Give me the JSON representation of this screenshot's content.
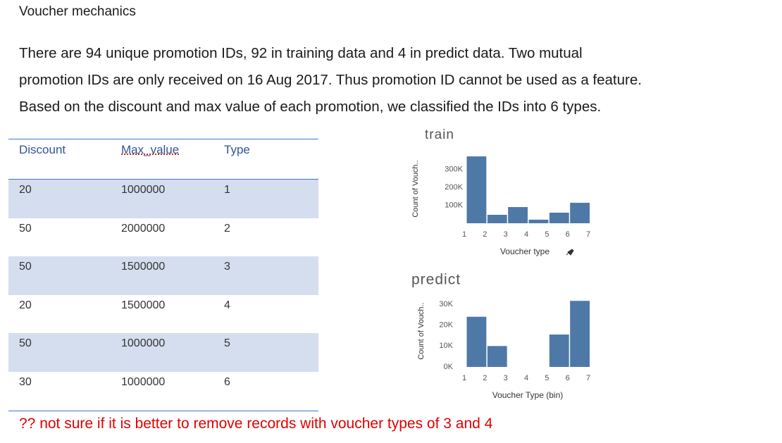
{
  "heading": "Voucher mechanics",
  "paragraph": [
    "There are 94 unique promotion IDs, 92 in training data and 4 in predict data. Two mutual",
    "promotion IDs are only received on 16 Aug 2017. Thus promotion ID cannot be used as a feature.",
    "Based on the discount and max value of each promotion, we classified the IDs into 6 types."
  ],
  "table": {
    "header": [
      "Discount",
      "Max_value",
      "Type"
    ],
    "rows": [
      [
        20,
        1000000,
        1
      ],
      [
        50,
        2000000,
        2
      ],
      [
        50,
        1500000,
        3
      ],
      [
        20,
        1500000,
        4
      ],
      [
        50,
        1000000,
        5
      ],
      [
        30,
        1000000,
        6
      ]
    ]
  },
  "chart_data": [
    {
      "type": "histogram",
      "title": "train",
      "ylabel": "Count of Vouch..",
      "xlabel": "Voucher type",
      "bins": [
        1,
        2,
        3,
        4,
        5,
        6,
        7
      ],
      "counts": [
        372000,
        47000,
        90000,
        20000,
        59000,
        114000
      ],
      "color": "#4e79a7",
      "ylim": [
        0,
        380000
      ],
      "yticks": [
        {
          "value": 100000,
          "label": "100K"
        },
        {
          "value": 200000,
          "label": "200K"
        },
        {
          "value": 300000,
          "label": "300K"
        }
      ]
    },
    {
      "type": "histogram",
      "title": "predict",
      "ylabel": "Count of Vouch..",
      "xlabel": "Voucher Type (bin)",
      "bins": [
        1,
        2,
        3,
        4,
        5,
        6,
        7
      ],
      "counts": [
        24000,
        10000,
        0,
        0,
        15500,
        31600
      ],
      "color": "#4e79a7",
      "ylim": [
        0,
        32000
      ],
      "yticks": [
        {
          "value": 0,
          "label": "0K"
        },
        {
          "value": 10000,
          "label": "10K"
        },
        {
          "value": 20000,
          "label": "20K"
        },
        {
          "value": 30000,
          "label": "30K"
        }
      ]
    }
  ],
  "note": "?? not sure if it is better to remove records with voucher types of 3 and 4"
}
